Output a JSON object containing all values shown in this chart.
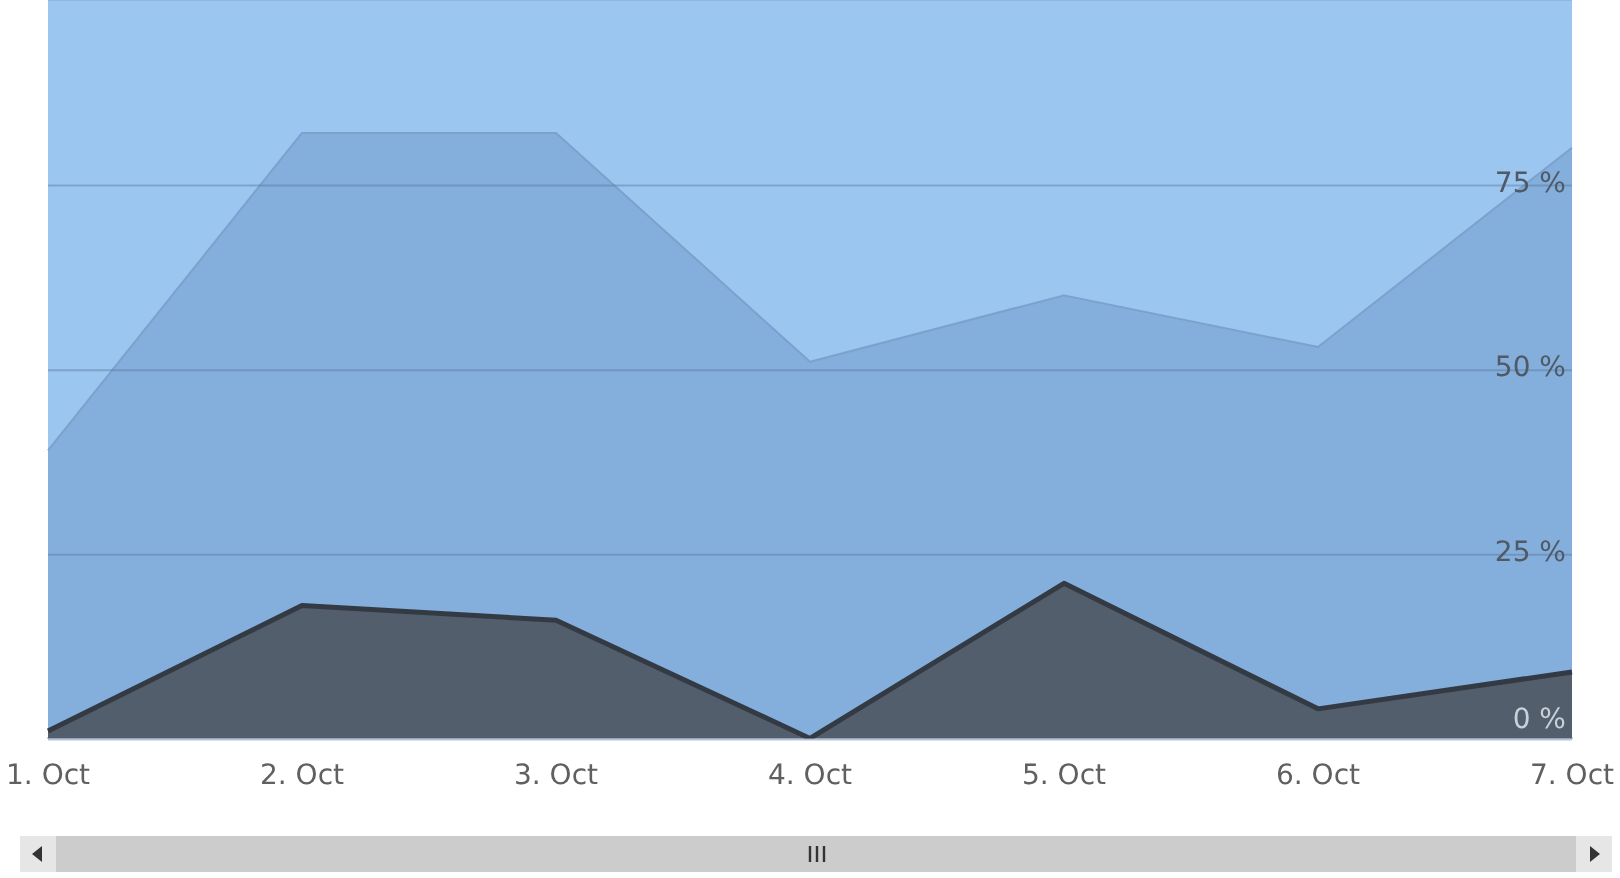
{
  "chart_data": {
    "type": "area",
    "stacked": true,
    "categories": [
      "1. Oct",
      "2. Oct",
      "3. Oct",
      "4. Oct",
      "5. Oct",
      "6. Oct",
      "7. Oct"
    ],
    "series": [
      {
        "color": "#535e6c",
        "values": [
          1,
          18,
          16,
          0,
          21,
          4,
          9
        ]
      },
      {
        "color": "#84aedb",
        "values": [
          38,
          64,
          66,
          51,
          39,
          49,
          71
        ]
      },
      {
        "color": "#9bc6f0",
        "values": [
          61,
          18,
          18,
          49,
          40,
          47,
          20
        ]
      }
    ],
    "ylim": [
      0,
      100
    ],
    "yticks": [
      {
        "value": 0,
        "label": "0 %"
      },
      {
        "value": 25,
        "label": "25 %"
      },
      {
        "value": 50,
        "label": "50 %"
      },
      {
        "value": 75,
        "label": "75 %"
      }
    ],
    "grid": "y",
    "legend": false
  }
}
